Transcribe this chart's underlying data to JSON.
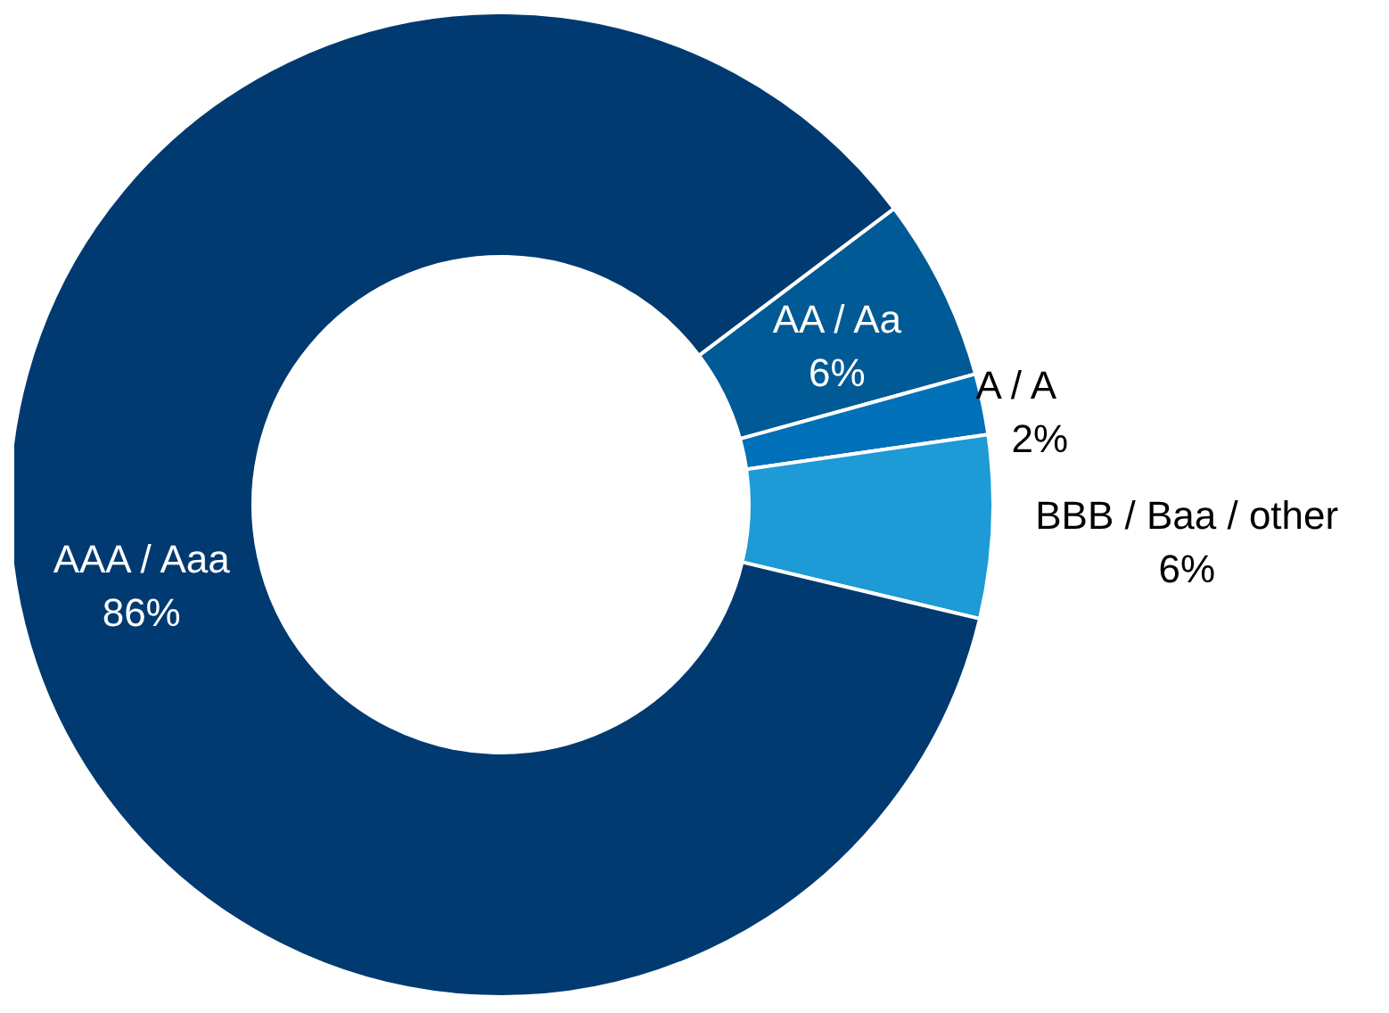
{
  "chart_data": {
    "type": "donut",
    "categories": [
      "AA / Aa",
      "A / A",
      "BBB / Baa / other",
      "AAA / Aaa"
    ],
    "values": [
      6,
      2,
      6,
      86
    ],
    "value_labels": [
      "6%",
      "2%",
      "6%",
      "86%"
    ],
    "colors": [
      "#005a96",
      "#0070b8",
      "#1e9ad6",
      "#003a70"
    ]
  }
}
